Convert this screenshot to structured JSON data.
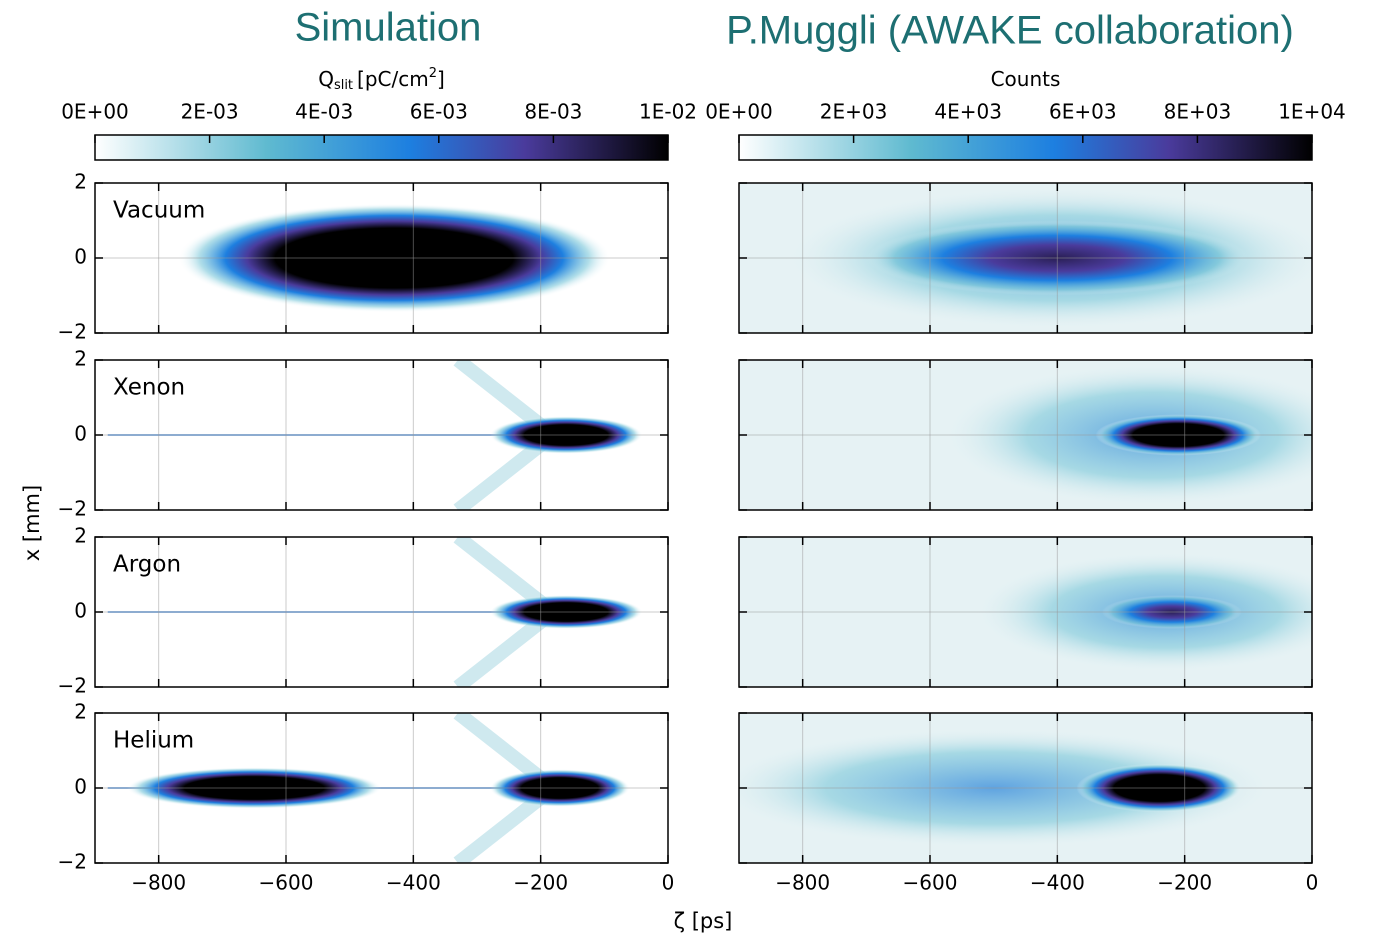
{
  "chart_data": {
    "type": "heatmap",
    "column_titles": [
      "Simulation",
      "P.Muggli (AWAKE collaboration)"
    ],
    "xlabel": "ζ [ps]",
    "ylabel": "x [mm]",
    "xlim": [
      -900,
      0
    ],
    "xticks": [
      {
        "value": -800,
        "label": "−800"
      },
      {
        "value": -600,
        "label": "−600"
      },
      {
        "value": -400,
        "label": "−400"
      },
      {
        "value": -200,
        "label": "−200"
      },
      0
    ],
    "ylim": [
      -2,
      2
    ],
    "yticks": [
      {
        "value": -2,
        "label": "−2"
      },
      0,
      2
    ],
    "panels": [
      "Vacuum",
      "Xenon",
      "Argon",
      "Helium"
    ],
    "colorbars": [
      {
        "label_parts": [
          "Q",
          "slit",
          "[pC/cm",
          "2",
          "]"
        ],
        "lim": [
          0,
          0.01
        ],
        "ticks": [
          {
            "value": 0,
            "label": "0E+00"
          },
          {
            "value": 0.002,
            "label": "2E-03"
          },
          {
            "value": 0.004,
            "label": "4E-03"
          },
          {
            "value": 0.006,
            "label": "6E-03"
          },
          {
            "value": 0.008,
            "label": "8E-03"
          },
          {
            "value": 0.01,
            "label": "1E-02"
          }
        ]
      },
      {
        "label_parts": [
          "Counts"
        ],
        "lim": [
          0,
          10000
        ],
        "ticks": [
          {
            "value": 0,
            "label": "0E+00"
          },
          {
            "value": 2000,
            "label": "2E+03"
          },
          {
            "value": 4000,
            "label": "4E+03"
          },
          {
            "value": 6000,
            "label": "6E+03"
          },
          {
            "value": 8000,
            "label": "8E+03"
          },
          {
            "value": 10000,
            "label": "1E+04"
          }
        ]
      }
    ]
  }
}
